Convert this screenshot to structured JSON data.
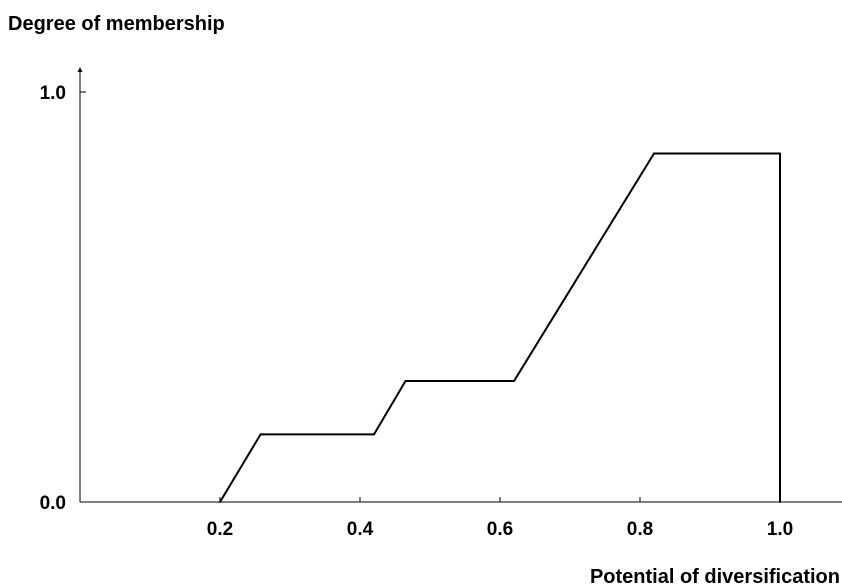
{
  "chart_data": {
    "type": "line",
    "title": "",
    "ylabel": "Degree of membership",
    "xlabel": "Potential of diversification",
    "xlim": [
      0.0,
      1.1
    ],
    "ylim": [
      0.0,
      1.0
    ],
    "x_ticks": [
      {
        "value": 0.2,
        "label": "0.2"
      },
      {
        "value": 0.4,
        "label": "0.4"
      },
      {
        "value": 0.6,
        "label": "0.6"
      },
      {
        "value": 0.8,
        "label": "0.8"
      },
      {
        "value": 1.0,
        "label": "1.0"
      }
    ],
    "y_ticks": [
      {
        "value": 0.0,
        "label": "0.0"
      },
      {
        "value": 1.0,
        "label": "1.0"
      }
    ],
    "grid": false,
    "legend": "none",
    "line_color": "#000000",
    "series": [
      {
        "x": [
          0.2,
          0.258,
          0.42,
          0.465,
          0.62,
          0.82,
          1.0,
          1.0
        ],
        "y": [
          0.0,
          0.165,
          0.165,
          0.295,
          0.295,
          0.85,
          0.85,
          0.0
        ]
      }
    ]
  }
}
